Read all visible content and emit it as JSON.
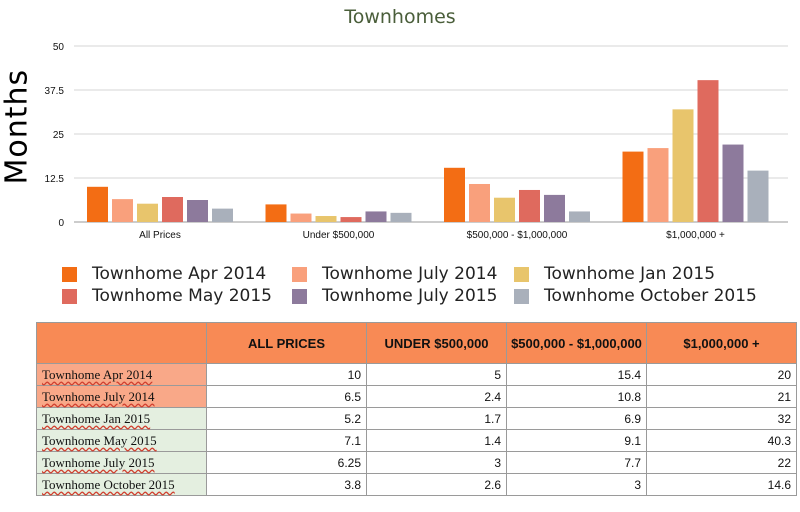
{
  "chart_data": {
    "type": "bar",
    "title": "Townhomes",
    "ylabel": "Months",
    "xlabel": "",
    "ylim": [
      0,
      50
    ],
    "yticks": [
      "50",
      "37.5",
      "25",
      "12.5",
      "0"
    ],
    "ytick_values": [
      50,
      37.5,
      25,
      12.5,
      0
    ],
    "categories": [
      "All Prices",
      "Under $500,000",
      "$500,000 - $1,000,000",
      "$1,000,000 +"
    ],
    "series": [
      {
        "name": "Townhome Apr 2014",
        "color": "#f36d14",
        "values": [
          10,
          5,
          15.4,
          20
        ]
      },
      {
        "name": "Townhome July 2014",
        "color": "#f9a07c",
        "values": [
          6.5,
          2.4,
          10.8,
          21
        ]
      },
      {
        "name": "Townhome Jan 2015",
        "color": "#e8c56c",
        "values": [
          5.2,
          1.7,
          6.9,
          32
        ]
      },
      {
        "name": "Townhome May 2015",
        "color": "#df6a5e",
        "values": [
          7.1,
          1.4,
          9.1,
          40.3
        ]
      },
      {
        "name": "Townhome July 2015",
        "color": "#8d7a9c",
        "values": [
          6.25,
          3,
          7.7,
          22
        ]
      },
      {
        "name": "Townhome October 2015",
        "color": "#a9b0bb",
        "values": [
          3.8,
          2.6,
          3,
          14.6
        ]
      }
    ],
    "grid": true,
    "legend_position": "bottom"
  },
  "table": {
    "headers": [
      "",
      "ALL PRICES",
      "UNDER $500,000",
      "$500,000 - $1,000,000",
      "$1,000,000 +"
    ],
    "rows": [
      {
        "label": "Townhome Apr 2014",
        "values": [
          "10",
          "5",
          "15.4",
          "20"
        ],
        "bg": "#f9a888"
      },
      {
        "label": "Townhome July 2014",
        "values": [
          "6.5",
          "2.4",
          "10.8",
          "21"
        ],
        "bg": "#f9a888"
      },
      {
        "label": "Townhome Jan 2015",
        "values": [
          "5.2",
          "1.7",
          "6.9",
          "32"
        ],
        "bg": "#e4efe0"
      },
      {
        "label": "Townhome May 2015",
        "values": [
          "7.1",
          "1.4",
          "9.1",
          "40.3"
        ],
        "bg": "#e4efe0"
      },
      {
        "label": "Townhome July 2015",
        "values": [
          "6.25",
          "3",
          "7.7",
          "22"
        ],
        "bg": "#e4efe0"
      },
      {
        "label": "Townhome October 2015",
        "values": [
          "3.8",
          "2.6",
          "3",
          "14.6"
        ],
        "bg": "#e4efe0"
      }
    ]
  }
}
